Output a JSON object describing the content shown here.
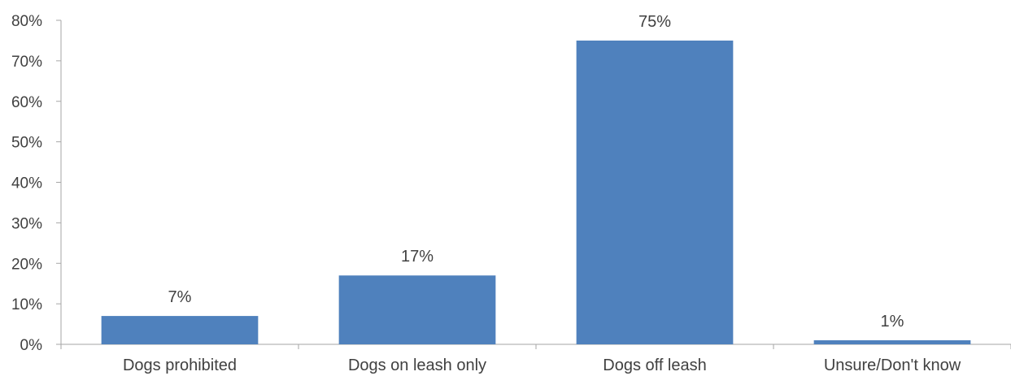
{
  "chart_data": {
    "type": "bar",
    "title": "",
    "xlabel": "",
    "ylabel": "",
    "categories": [
      "Dogs prohibited",
      "Dogs on leash only",
      "Dogs off leash",
      "Unsure/Don't know"
    ],
    "values": [
      7,
      17,
      75,
      1
    ],
    "data_labels": [
      "7%",
      "17%",
      "75%",
      "1%"
    ],
    "ylim": [
      0,
      80
    ],
    "yticks": [
      0,
      10,
      20,
      30,
      40,
      50,
      60,
      70,
      80
    ],
    "ytick_labels": [
      "0%",
      "10%",
      "20%",
      "30%",
      "40%",
      "50%",
      "60%",
      "70%",
      "80%"
    ],
    "bar_color": "#4F81BD",
    "text_color": "#404040",
    "axis_color": "#A6A6A6",
    "grid": false,
    "legend": "none"
  }
}
